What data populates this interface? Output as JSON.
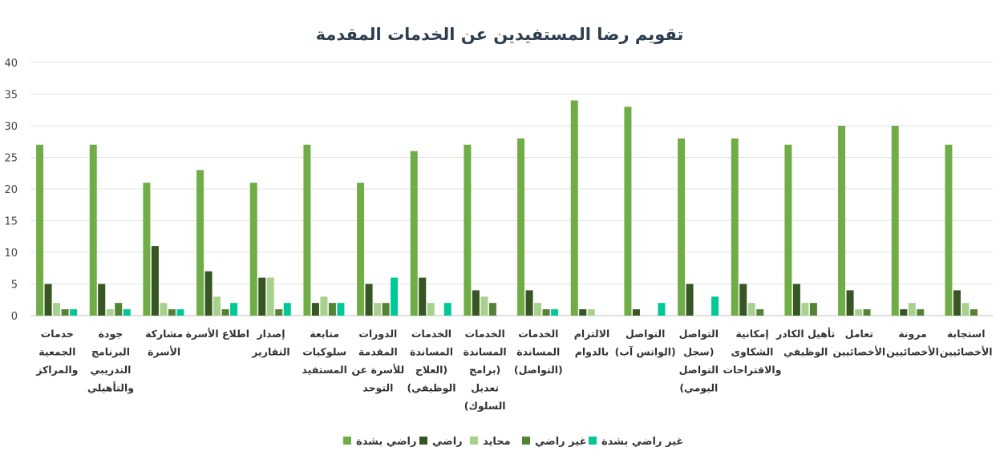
{
  "chart_data": {
    "type": "bar",
    "title": "تقويم رضا المستفيدين عن الخدمات المقدمة",
    "xlabel": "",
    "ylabel": "",
    "ylim": [
      0,
      40
    ],
    "yticks": [
      0,
      5,
      10,
      15,
      20,
      25,
      30,
      35,
      40
    ],
    "grid": true,
    "legend_position": "bottom",
    "categories": [
      [
        "خدمات",
        "الجمعية",
        "والمراكز"
      ],
      [
        "جودة",
        "البرنامج",
        "التدريبي",
        "والتأهيلي"
      ],
      [
        "مشاركة",
        "الأسرة"
      ],
      [
        "اطلاع الأسرة"
      ],
      [
        "إصدار",
        "التقارير"
      ],
      [
        "متابعة",
        "سلوكيات",
        "المستفيد"
      ],
      [
        "الدورات",
        "المقدمة",
        "للأسرة عن",
        "التوحد"
      ],
      [
        "الخدمات",
        "المساندة",
        "(العلاج",
        "الوظيفي)"
      ],
      [
        "الخدمات",
        "المساندة",
        "(برامج",
        "تعديل",
        "السلوك)"
      ],
      [
        "الخدمات",
        "المساندة",
        "(التواصل)"
      ],
      [
        "الالتزام",
        "بالدوام"
      ],
      [
        "التواصل",
        "(الواتس آب)"
      ],
      [
        "التواصل",
        "(سجل",
        "التواصل",
        "اليومي)"
      ],
      [
        "إمكانية",
        "الشكاوى",
        "والاقتراحات"
      ],
      [
        "تأهيل الكادر",
        "الوظيفي"
      ],
      [
        "تعامل",
        "الأخصائيين"
      ],
      [
        "مرونة",
        "الأخصائيين"
      ],
      [
        "استجابة",
        "الأخصائيين"
      ]
    ],
    "series": [
      {
        "name": "راضي بشدة",
        "color": "#70ad47",
        "values": [
          27,
          27,
          21,
          23,
          21,
          27,
          21,
          26,
          27,
          28,
          34,
          33,
          28,
          28,
          27,
          30,
          30,
          27
        ]
      },
      {
        "name": "راضي",
        "color": "#375623",
        "values": [
          5,
          5,
          11,
          7,
          6,
          2,
          5,
          6,
          4,
          4,
          1,
          1,
          5,
          5,
          5,
          4,
          1,
          4
        ]
      },
      {
        "name": "محايد",
        "color": "#a9d18e",
        "values": [
          2,
          1,
          2,
          3,
          6,
          3,
          2,
          2,
          3,
          2,
          1,
          0,
          0,
          2,
          2,
          1,
          2,
          2
        ]
      },
      {
        "name": "غير راضي",
        "color": "#548235",
        "values": [
          1,
          2,
          1,
          1,
          1,
          2,
          2,
          0,
          2,
          1,
          0,
          0,
          0,
          1,
          2,
          1,
          1,
          1
        ]
      },
      {
        "name": "غير راضي بشدة",
        "color": "#00c896",
        "values": [
          1,
          1,
          1,
          2,
          2,
          2,
          6,
          2,
          0,
          1,
          0,
          2,
          3,
          0,
          0,
          0,
          0,
          0
        ]
      }
    ]
  }
}
